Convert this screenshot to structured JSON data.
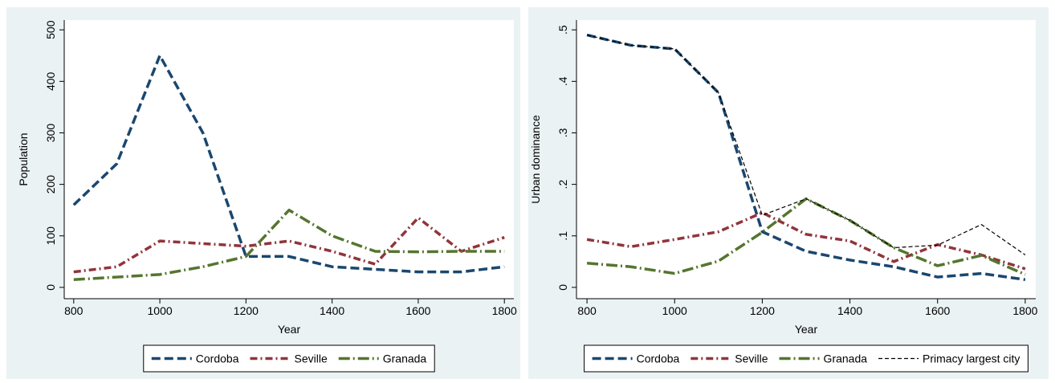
{
  "chart_data": [
    {
      "type": "line",
      "xlabel": "Year",
      "ylabel": "Population",
      "x": [
        800,
        900,
        1000,
        1100,
        1200,
        1300,
        1400,
        1500,
        1600,
        1700,
        1800
      ],
      "xlim": [
        778,
        1822
      ],
      "xticks": [
        800,
        1000,
        1200,
        1400,
        1600,
        1800
      ],
      "ylim": [
        -22,
        519
      ],
      "yticks": [
        0,
        100,
        200,
        300,
        400,
        500
      ],
      "series": [
        {
          "name": "Cordoba",
          "color": "#1a476f",
          "style": "dash",
          "values": [
            160,
            240,
            450,
            300,
            60,
            60,
            40,
            35,
            30,
            30,
            40
          ]
        },
        {
          "name": "Seville",
          "color": "#90353b",
          "style": "dashdot",
          "values": [
            30,
            40,
            90,
            85,
            80,
            90,
            70,
            45,
            135,
            70,
            97
          ]
        },
        {
          "name": "Granada",
          "color": "#55752f",
          "style": "longdashdot",
          "values": [
            15,
            20,
            25,
            40,
            60,
            150,
            100,
            70,
            69,
            70,
            70
          ]
        }
      ]
    },
    {
      "type": "line",
      "xlabel": "Year",
      "ylabel": "Urban dominance",
      "x": [
        800,
        900,
        1000,
        1100,
        1200,
        1300,
        1400,
        1500,
        1600,
        1700,
        1800
      ],
      "xlim": [
        776,
        1824
      ],
      "xticks": [
        800,
        1000,
        1200,
        1400,
        1600,
        1800
      ],
      "ylim": [
        -0.022,
        0.519
      ],
      "yticks": [
        0,
        {
          "value": 0.1,
          "label": ".1"
        },
        {
          "value": 0.2,
          "label": ".2"
        },
        {
          "value": 0.3,
          "label": ".3"
        },
        {
          "value": 0.4,
          "label": ".4"
        },
        {
          "value": 0.5,
          "label": ".5"
        }
      ],
      "series": [
        {
          "name": "Cordoba",
          "color": "#1a476f",
          "style": "dash",
          "values": [
            0.49,
            0.47,
            0.463,
            0.378,
            0.108,
            0.07,
            0.053,
            0.04,
            0.02,
            0.027,
            0.015
          ]
        },
        {
          "name": "Seville",
          "color": "#90353b",
          "style": "dashdot",
          "values": [
            0.093,
            0.079,
            0.093,
            0.108,
            0.145,
            0.103,
            0.09,
            0.05,
            0.083,
            0.063,
            0.036
          ]
        },
        {
          "name": "Granada",
          "color": "#55752f",
          "style": "longdashdot",
          "values": [
            0.047,
            0.04,
            0.027,
            0.051,
            0.107,
            0.172,
            0.13,
            0.077,
            0.042,
            0.062,
            0.025
          ]
        },
        {
          "name": "Primacy largest city",
          "color": "#000000",
          "style": "thindash",
          "values": [
            0.49,
            0.47,
            0.463,
            0.378,
            0.14,
            0.172,
            0.13,
            0.077,
            0.082,
            0.122,
            0.063
          ]
        }
      ]
    }
  ]
}
